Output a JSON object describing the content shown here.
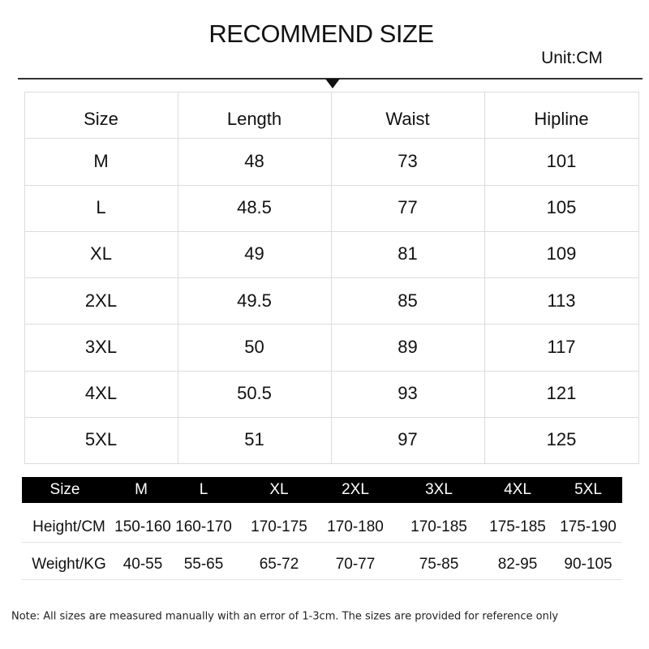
{
  "header": {
    "title": "RECOMMEND SIZE",
    "unit": "Unit:CM"
  },
  "size_table": {
    "columns": [
      "Size",
      "Length",
      "Waist",
      "Hipline"
    ],
    "rows": [
      [
        "M",
        "48",
        "73",
        "101"
      ],
      [
        "L",
        "48.5",
        "77",
        "105"
      ],
      [
        "XL",
        "49",
        "81",
        "109"
      ],
      [
        "2XL",
        "49.5",
        "85",
        "113"
      ],
      [
        "3XL",
        "50",
        "89",
        "117"
      ],
      [
        "4XL",
        "50.5",
        "93",
        "121"
      ],
      [
        "5XL",
        "51",
        "97",
        "125"
      ]
    ]
  },
  "body_table": {
    "columns": [
      "Size",
      "M",
      "L",
      "XL",
      "2XL",
      "3XL",
      "4XL",
      "5XL"
    ],
    "rows": [
      [
        "Height/CM",
        "150-160",
        "160-170",
        "170-175",
        "170-180",
        "170-185",
        "175-185",
        "175-190"
      ],
      [
        "Weight/KG",
        "40-55",
        "55-65",
        "65-72",
        "70-77",
        "75-85",
        "82-95",
        "90-105"
      ]
    ]
  },
  "note": "Note: All sizes are measured manually with an error of 1-3cm. The sizes are provided for reference only"
}
